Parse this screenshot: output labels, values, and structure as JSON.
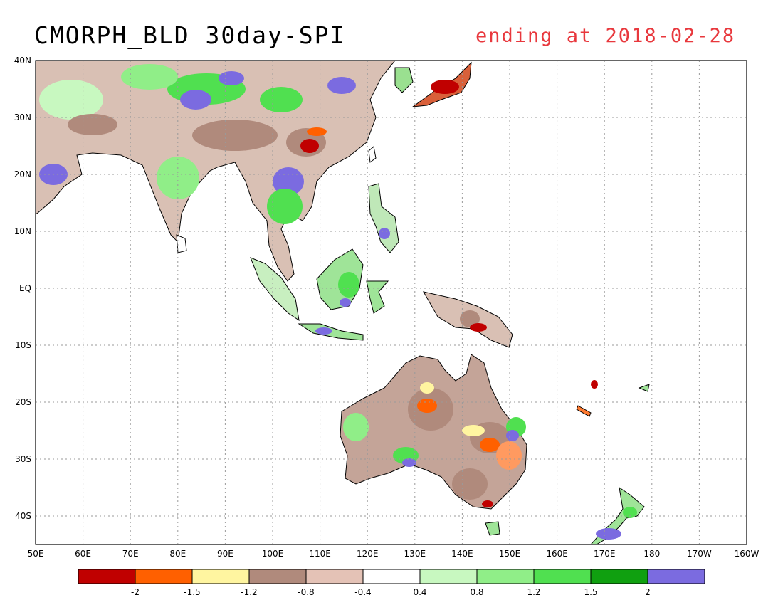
{
  "title": "CMORPH_BLD 30day-SPI",
  "subtitle": "ending at 2018-02-28",
  "map": {
    "lon_labels": [
      "50E",
      "60E",
      "70E",
      "80E",
      "90E",
      "100E",
      "110E",
      "120E",
      "130E",
      "140E",
      "150E",
      "160E",
      "170E",
      "180",
      "170W",
      "160W"
    ],
    "lat_labels": [
      "40N",
      "30N",
      "20N",
      "10N",
      "EQ",
      "10S",
      "20S",
      "30S",
      "40S"
    ],
    "lon_range": [
      50,
      200
    ],
    "lat_range": [
      -45,
      40
    ]
  },
  "legend": {
    "colors": [
      "#c00000",
      "#ff6000",
      "#fff5a0",
      "#b08a7c",
      "#e4c2b6",
      "#ffffff",
      "#c8f8c0",
      "#90ee88",
      "#50e050",
      "#10a010",
      "#7b6be0"
    ],
    "labels": [
      "-2",
      "-1.5",
      "-1.2",
      "-0.8",
      "-0.4",
      "0.4",
      "0.8",
      "1.2",
      "1.5",
      "2"
    ]
  }
}
